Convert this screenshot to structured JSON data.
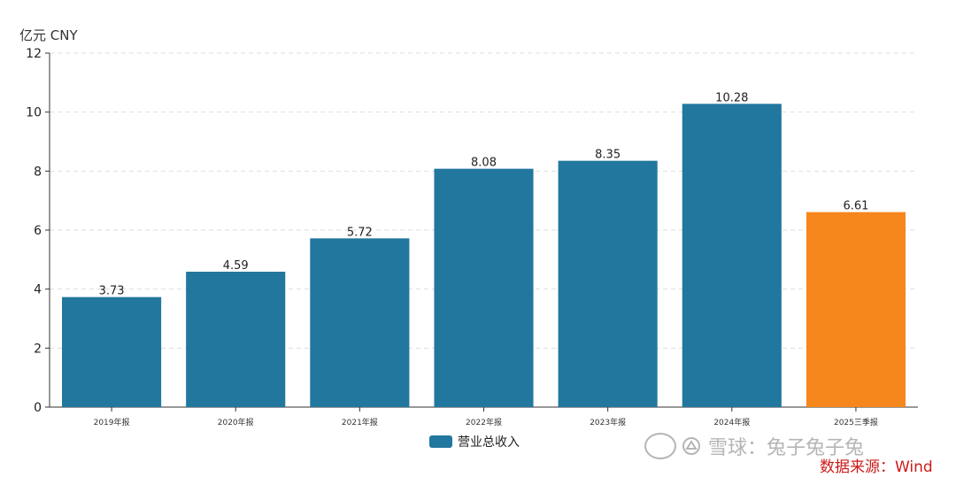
{
  "unit_label": "亿元  CNY",
  "legend": {
    "label": "营业总收入",
    "color": "#22779f"
  },
  "watermark": {
    "text": "雪球：兔子兔子兔"
  },
  "source_note": "数据来源：Wind",
  "chart_data": {
    "type": "bar",
    "categories": [
      "2019年报",
      "2020年报",
      "2021年报",
      "2022年报",
      "2023年报",
      "2024年报",
      "2025三季报"
    ],
    "series": [
      {
        "name": "营业总收入",
        "values": [
          3.73,
          4.59,
          5.72,
          8.08,
          8.35,
          10.28,
          6.61
        ],
        "data_labels": [
          "3.73",
          "4.59",
          "5.72",
          "8.08",
          "8.35",
          "10.28",
          "6.61"
        ],
        "colors": [
          "#22779f",
          "#22779f",
          "#22779f",
          "#22779f",
          "#22779f",
          "#22779f",
          "#f5871c"
        ]
      }
    ],
    "ylim": [
      0,
      12
    ],
    "yticks": [
      0,
      2,
      4,
      6,
      8,
      10,
      12
    ],
    "ytick_labels": [
      "0",
      "2",
      "4",
      "6",
      "8",
      "10",
      "12"
    ],
    "grid": "horizontal dashed",
    "legend_position": "bottom-center"
  }
}
